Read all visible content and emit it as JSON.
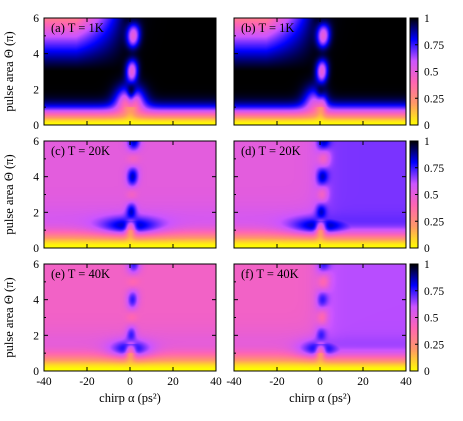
{
  "chart_data": {
    "type": "heatmap",
    "xlabel": "chirp α (ps²)",
    "ylabel": "pulse area Θ (π)",
    "x_ticks": [
      "-40",
      "-20",
      "0",
      "20",
      "40"
    ],
    "y_ticks": [
      "0",
      "2",
      "4",
      "6"
    ],
    "colorbar_ticks": [
      "0",
      "0.25",
      "0.5",
      "0.75",
      "1"
    ],
    "xlim": [
      -40,
      40
    ],
    "ylim": [
      0,
      6
    ],
    "color_range": [
      0,
      1
    ],
    "colormap": [
      "#ffff00",
      "#ff9a66",
      "#ff66b3",
      "#cc55ff",
      "#0000ff",
      "#000000"
    ],
    "panels": [
      {
        "label": "(a) T = 1K",
        "row": 0,
        "col": 0,
        "temperature": 1,
        "model": "A"
      },
      {
        "label": "(b) T = 1K",
        "row": 0,
        "col": 1,
        "temperature": 1,
        "model": "B"
      },
      {
        "label": "(c) T = 20K",
        "row": 1,
        "col": 0,
        "temperature": 20,
        "model": "A"
      },
      {
        "label": "(d) T = 20K",
        "row": 1,
        "col": 1,
        "temperature": 20,
        "model": "B"
      },
      {
        "label": "(e) T = 40K",
        "row": 2,
        "col": 0,
        "temperature": 40,
        "model": "A"
      },
      {
        "label": "(f) T = 40K",
        "row": 2,
        "col": 1,
        "temperature": 40,
        "model": "B"
      }
    ]
  }
}
